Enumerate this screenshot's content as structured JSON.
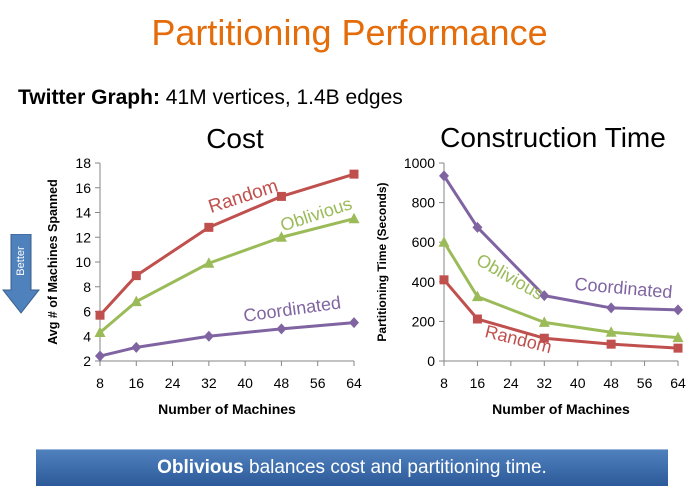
{
  "page_title": "Partitioning Performance",
  "subtitle": {
    "bold": "Twitter Graph:",
    "rest": " 41M vertices, 1.4B edges"
  },
  "better_label": "Better",
  "banner": {
    "bold": "Oblivious",
    "rest": " balances cost and partitioning time."
  },
  "colors": {
    "title": "#e46c0a",
    "random": "#c0504d",
    "oblivious": "#9bbb59",
    "coordinated": "#8064a2",
    "banner": "#3a6db5",
    "arrow": "#4f81bd"
  },
  "chart_data": [
    {
      "type": "line",
      "title": "Cost",
      "xlabel": "Number of Machines",
      "ylabel": "Avg # of Machines Spanned",
      "xlim": [
        8,
        64
      ],
      "ylim": [
        2,
        18
      ],
      "xticks": [
        8,
        16,
        24,
        32,
        40,
        48,
        56,
        64
      ],
      "yticks": [
        2,
        4,
        6,
        8,
        10,
        12,
        14,
        16,
        18
      ],
      "series": [
        {
          "name": "Random",
          "color": "#c0504d",
          "marker": "square",
          "x": [
            8,
            16,
            32,
            48,
            64
          ],
          "values": [
            5.7,
            8.9,
            12.8,
            15.3,
            17.1
          ]
        },
        {
          "name": "Oblivious",
          "color": "#9bbb59",
          "marker": "triangle",
          "x": [
            8,
            16,
            32,
            48,
            64
          ],
          "values": [
            4.3,
            6.8,
            9.9,
            12.0,
            13.5
          ]
        },
        {
          "name": "Coordinated",
          "color": "#8064a2",
          "marker": "diamond",
          "x": [
            8,
            16,
            32,
            48,
            64
          ],
          "values": [
            2.4,
            3.1,
            4.0,
            4.6,
            5.1
          ]
        }
      ]
    },
    {
      "type": "line",
      "title": "Construction Time",
      "xlabel": "Number of Machines",
      "ylabel": "Partitioning Time (Seconds)",
      "xlim": [
        8,
        64
      ],
      "ylim": [
        0,
        1000
      ],
      "xticks": [
        8,
        16,
        24,
        32,
        40,
        48,
        56,
        64
      ],
      "yticks": [
        0,
        200,
        400,
        600,
        800,
        1000
      ],
      "series": [
        {
          "name": "Coordinated",
          "color": "#8064a2",
          "marker": "diamond",
          "x": [
            8,
            16,
            32,
            48,
            64
          ],
          "values": [
            935,
            675,
            330,
            268,
            258
          ]
        },
        {
          "name": "Oblivious",
          "color": "#9bbb59",
          "marker": "triangle",
          "x": [
            8,
            16,
            32,
            48,
            64
          ],
          "values": [
            600,
            325,
            195,
            145,
            118
          ]
        },
        {
          "name": "Random",
          "color": "#c0504d",
          "marker": "square",
          "x": [
            8,
            16,
            32,
            48,
            64
          ],
          "values": [
            410,
            212,
            115,
            85,
            65
          ]
        }
      ]
    }
  ]
}
